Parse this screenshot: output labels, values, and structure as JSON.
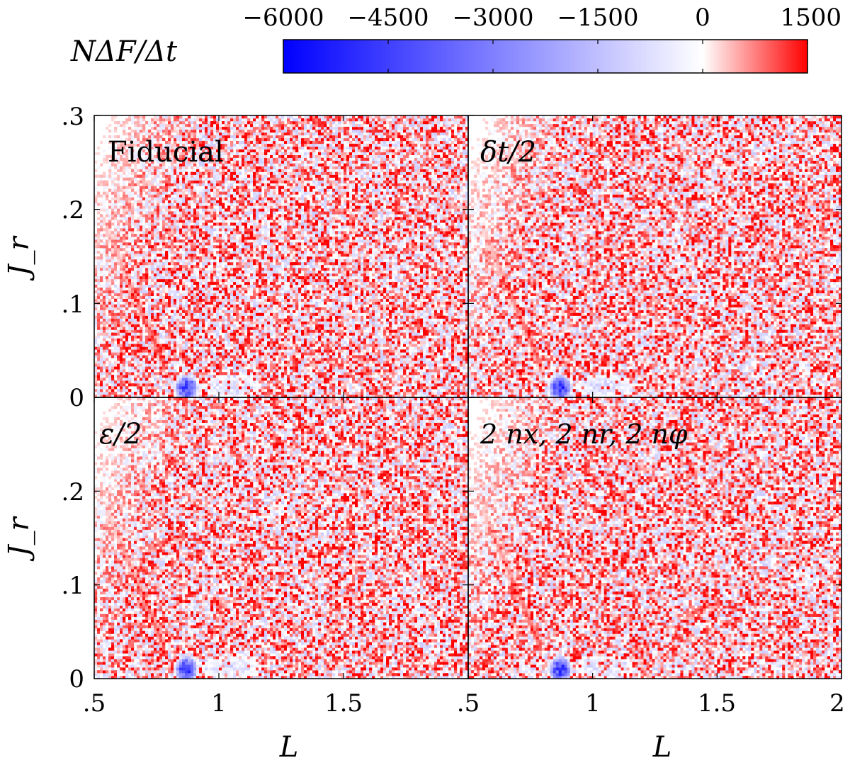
{
  "chart_data": {
    "type": "heatmap",
    "colorbar": {
      "label": "NΔF/Δt",
      "ticks": [
        "−6000",
        "−4500",
        "−3000",
        "−1500",
        "0",
        "1500"
      ],
      "vmin": -6000,
      "vmax": 1500,
      "colors": {
        "min": "#0000ff",
        "mid": "#ffffff",
        "max": "#ff0000"
      }
    },
    "x_axis": {
      "label": "L",
      "range": [
        0.5,
        2
      ],
      "ticks": [
        ".5",
        "1",
        "1.5",
        "2"
      ],
      "ticks_left_panel": [
        ".5",
        "1",
        "1.5"
      ]
    },
    "y_axis": {
      "label": "J_r",
      "range": [
        0,
        0.3
      ],
      "ticks": [
        "0",
        ".1",
        ".2",
        ".3"
      ],
      "ticks_lower_panel": [
        "0",
        ".1",
        ".2"
      ]
    },
    "panels": [
      {
        "id": "fiducial",
        "label": "Fiducial"
      },
      {
        "id": "half-timestep",
        "label": "δt/2"
      },
      {
        "id": "half-softening",
        "label": "ε/2"
      },
      {
        "id": "double-resolution",
        "label": "2 nx, 2 nr, 2 nφ"
      }
    ],
    "features": {
      "red_ridge": {
        "L_range": [
          0.55,
          0.78
        ],
        "Jr_range": [
          0.18,
          0.035
        ],
        "peak_value": 1500
      },
      "blue_clump": {
        "L_center": 0.87,
        "Jr_center": 0.01,
        "min_value": -6000
      },
      "background_noise": {
        "value_range": [
          -1500,
          1500
        ]
      }
    }
  }
}
